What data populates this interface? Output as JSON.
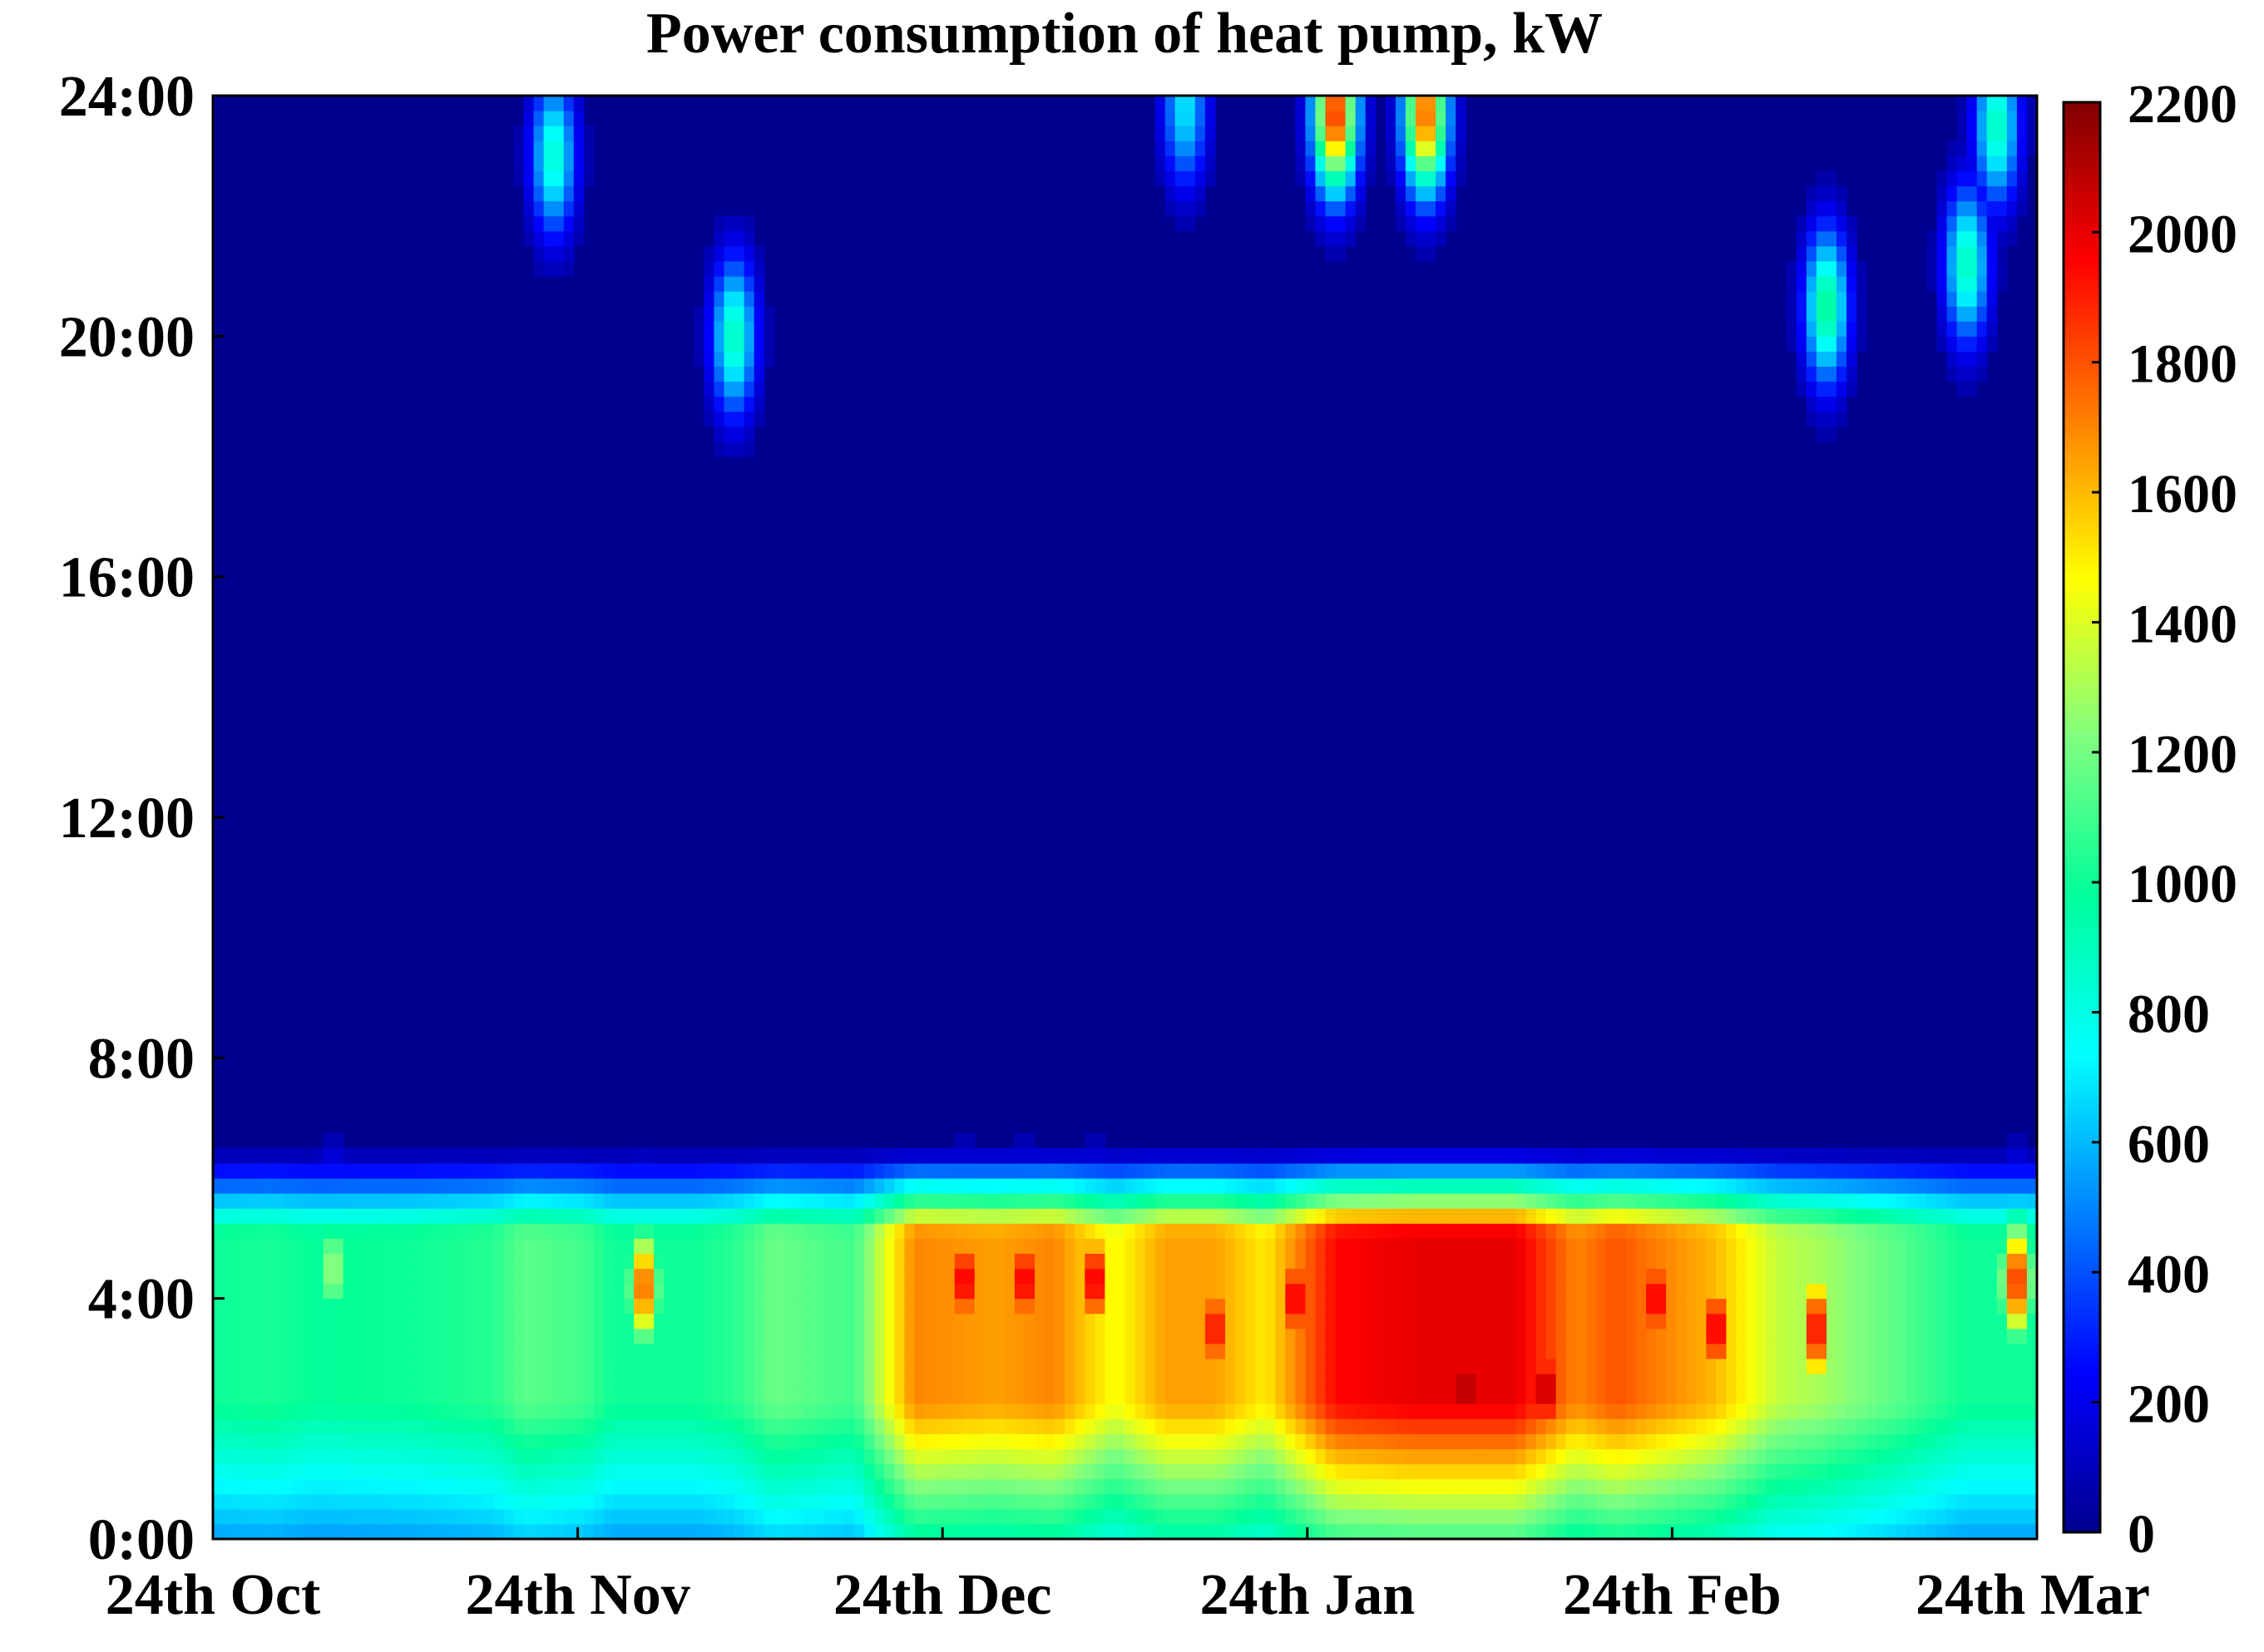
{
  "chart_data": {
    "type": "heatmap",
    "title": "Power consumption of heat pump, kW",
    "xlabel": "",
    "ylabel": "",
    "x_ticks": [
      "24th Oct",
      "24th Nov",
      "24th Dec",
      "24th Jan",
      "24th Feb",
      "24th Mar"
    ],
    "y_ticks": [
      "0:00",
      "4:00",
      "8:00",
      "12:00",
      "16:00",
      "20:00",
      "24:00"
    ],
    "colorbar_ticks": [
      0,
      200,
      400,
      600,
      800,
      1000,
      1200,
      1400,
      1600,
      1800,
      2000,
      2200
    ],
    "zlim": [
      0,
      2200
    ],
    "colormap": [
      "#00008f",
      "#0000ff",
      "#0080ff",
      "#00ffff",
      "#00ff9a",
      "#80ff80",
      "#ffff00",
      "#ff8000",
      "#ff0000",
      "#800000"
    ],
    "background_value": 0,
    "night_band": {
      "hours": [
        0,
        6.5
      ],
      "intensity_by_day": [
        [
          0,
          1000
        ],
        [
          6,
          1020
        ],
        [
          10,
          980
        ],
        [
          20,
          1000
        ],
        [
          28,
          1050
        ],
        [
          31,
          1150
        ],
        [
          37,
          1100
        ],
        [
          40,
          1000
        ],
        [
          48,
          1000
        ],
        [
          52,
          1050
        ],
        [
          56,
          1180
        ],
        [
          64,
          1100
        ],
        [
          70,
          1700
        ],
        [
          78,
          1650
        ],
        [
          84,
          1700
        ],
        [
          90,
          1450
        ],
        [
          95,
          1650
        ],
        [
          100,
          1650
        ],
        [
          105,
          1500
        ],
        [
          112,
          1950
        ],
        [
          120,
          2000
        ],
        [
          125,
          2000
        ],
        [
          130,
          2000
        ],
        [
          136,
          1700
        ],
        [
          140,
          1800
        ],
        [
          145,
          1700
        ],
        [
          150,
          1600
        ],
        [
          156,
          1350
        ],
        [
          160,
          1300
        ],
        [
          168,
          1150
        ],
        [
          175,
          1000
        ],
        [
          182,
          1000
        ]
      ]
    },
    "hotspots": [
      {
        "day": 12,
        "hour": 4.5,
        "value": 1300
      },
      {
        "day": 43,
        "hour": 4.2,
        "value": 1800
      },
      {
        "day": 75,
        "hour": 4.3,
        "value": 2050
      },
      {
        "day": 81,
        "hour": 4.3,
        "value": 2050
      },
      {
        "day": 88,
        "hour": 4.3,
        "value": 2050
      },
      {
        "day": 100,
        "hour": 3.5,
        "value": 2000
      },
      {
        "day": 108,
        "hour": 4.0,
        "value": 2050
      },
      {
        "day": 125,
        "hour": 2.5,
        "value": 2200
      },
      {
        "day": 133,
        "hour": 2.5,
        "value": 2150
      },
      {
        "day": 144,
        "hour": 4.0,
        "value": 2050
      },
      {
        "day": 150,
        "hour": 3.5,
        "value": 2050
      },
      {
        "day": 160,
        "hour": 3.5,
        "value": 2000
      },
      {
        "day": 180,
        "hour": 4.3,
        "value": 1900
      },
      {
        "day": 112,
        "hour": 23.7,
        "value": 1900
      },
      {
        "day": 121,
        "hour": 23.7,
        "value": 1800
      },
      {
        "day": 52,
        "hour": 20.0,
        "value": 900
      },
      {
        "day": 34,
        "hour": 23.0,
        "value": 850
      },
      {
        "day": 161,
        "hour": 20.5,
        "value": 1000
      },
      {
        "day": 175,
        "hour": 21.2,
        "value": 900
      },
      {
        "day": 178,
        "hour": 23.5,
        "value": 900
      },
      {
        "day": 97,
        "hour": 23.8,
        "value": 700
      }
    ],
    "grid": false,
    "colorbar_position": "right"
  }
}
